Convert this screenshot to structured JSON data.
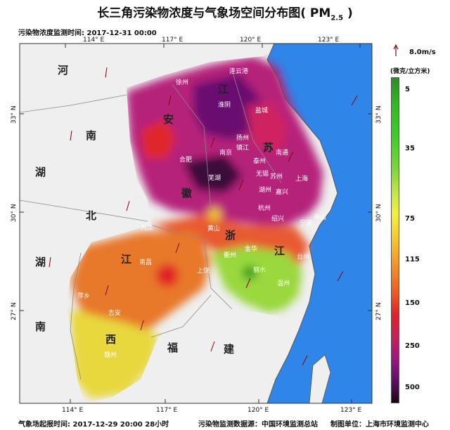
{
  "title": "长三角污染物浓度与气象场空间分布图( PM",
  "title_sub": "2.5",
  "title_end": " )",
  "monitor_time": "污染物浓度监测时间: 2017-12-31 00:00",
  "footer": {
    "forecast": "气象场起报时间: 2017-12-29 20:00 28小时",
    "source": "污染物监测数据源：中国环境监测总站",
    "producer": "制图单位：上海市环境监测中心"
  },
  "legend": {
    "unit": "(微克/立方米)",
    "wind": "8.0m/s",
    "ticks": [
      "5",
      "35",
      "75",
      "115",
      "150",
      "250",
      "500"
    ]
  },
  "lon_labels": [
    "114° E",
    "117° E",
    "120° E",
    "123° E"
  ],
  "lat_labels": [
    "33° N",
    "30° N",
    "27° N"
  ],
  "provinces": [
    "河",
    "南",
    "湖",
    "北",
    "湖",
    "南",
    "江",
    "西",
    "福",
    "建",
    "安",
    "徽",
    "江",
    "苏",
    "浙",
    "江"
  ],
  "cities": [
    "连云港",
    "徐州",
    "淮阴",
    "盐城",
    "扬州",
    "镇江",
    "南京",
    "泰州",
    "南通",
    "合肥",
    "无锡",
    "苏州",
    "上海",
    "芜湖",
    "湖州",
    "嘉兴",
    "杭州",
    "绍兴",
    "宁波",
    "舟山",
    "九江",
    "黄山",
    "南昌",
    "衢州",
    "金华",
    "台州",
    "上饶",
    "丽水",
    "温州",
    "萍乡",
    "吉安",
    "赣州"
  ],
  "colors": {
    "sea": "#2f86e8",
    "land": "#f0f0f0"
  }
}
